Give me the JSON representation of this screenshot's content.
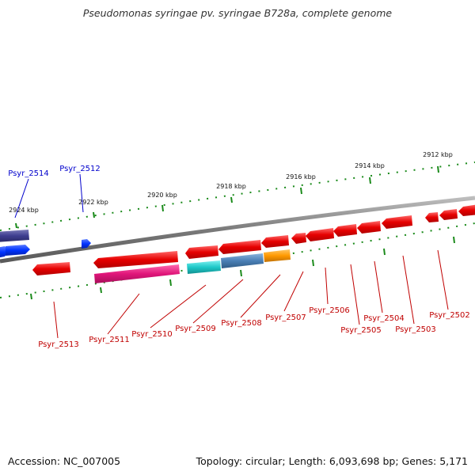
{
  "title": "Pseudomonas syringae pv. syringae B728a, complete genome",
  "accession": "Accession: NC_007005",
  "summary": "Topology: circular; Length: 6,093,698 bp; Genes: 5,171",
  "scale_ticks": [
    "2924 kbp",
    "2922 kbp",
    "2920 kbp",
    "2918 kbp",
    "2916 kbp",
    "2914 kbp",
    "2912 kbp"
  ],
  "gene_labels_forward": [
    "Psyr_2514",
    "Psyr_2512"
  ],
  "gene_labels_reverse": [
    "Psyr_2513",
    "Psyr_2511",
    "Psyr_2510",
    "Psyr_2509",
    "Psyr_2508",
    "Psyr_2507",
    "Psyr_2506",
    "Psyr_2505",
    "Psyr_2504",
    "Psyr_2503",
    "Psyr_2502"
  ],
  "colors": {
    "backbone": "#8a8a8a",
    "tick_green": "#1a8a1a",
    "red_gene": "#e60000",
    "blue_gene": "#0033ff",
    "navy_gene": "#3d3d8f",
    "magenta_gene": "#e0157a",
    "cyan_gene": "#1ec8c8",
    "steel_gene": "#4a7fb5",
    "orange_gene": "#ff9900",
    "label_red": "#c00000",
    "label_blue": "#0000cc"
  }
}
